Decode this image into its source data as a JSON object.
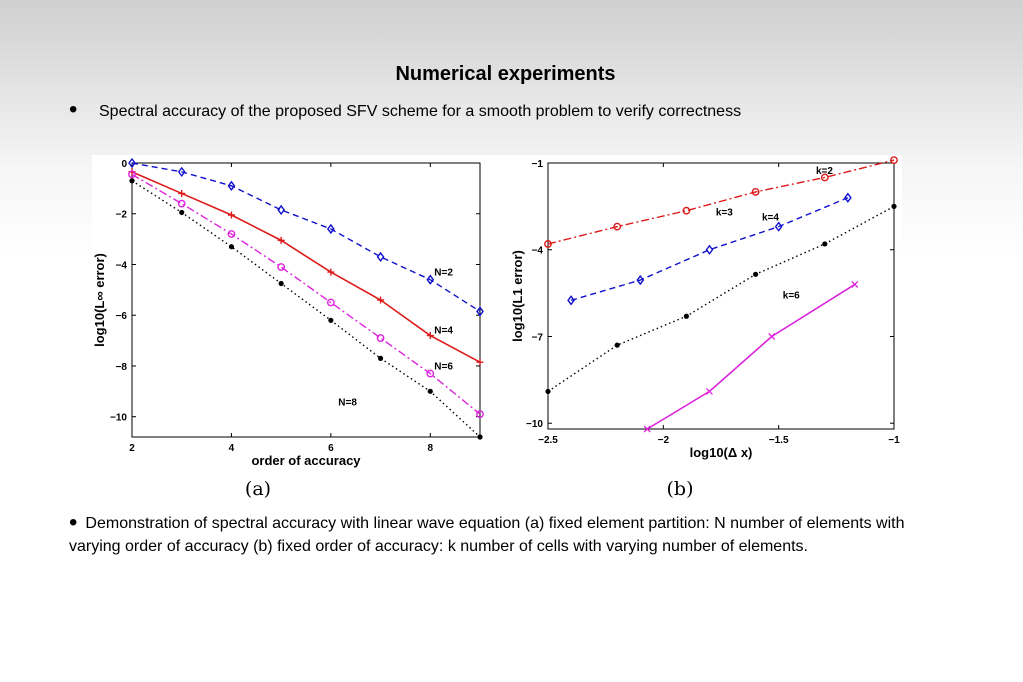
{
  "slide": {
    "title": "Numerical experiments",
    "bullet1": "Spectral accuracy of the proposed SFV scheme for a smooth problem to verify correctness",
    "bullet2": "Demonstration of spectral accuracy with linear wave equation (a) fixed element partition: N number of elements with varying order of accuracy (b) fixed order of accuracy: k number of cells with varying number of elements.",
    "bullet_glyph": "•"
  },
  "chart_data": [
    {
      "type": "line",
      "subcaption": "(a)",
      "xlabel": "order of accuracy",
      "ylabel": "log10(L∞ error)",
      "xlim": [
        2,
        9
      ],
      "ylim": [
        -10.8,
        0
      ],
      "xticks": [
        2,
        4,
        6,
        8
      ],
      "yticks": [
        0,
        -2,
        -4,
        -6,
        -8,
        -10
      ],
      "series": [
        {
          "name": "N=2",
          "color": "#1010cc",
          "style": "dashed",
          "marker": "diamond",
          "x": [
            2,
            3,
            4,
            5,
            6,
            7,
            8,
            9
          ],
          "y": [
            0,
            -0.35,
            -0.9,
            -1.85,
            -2.6,
            -3.7,
            -4.6,
            -5.85
          ]
        },
        {
          "name": "N=4",
          "color": "#dd1a1a",
          "style": "solid",
          "marker": "plus",
          "x": [
            2,
            3,
            4,
            5,
            6,
            7,
            8,
            9
          ],
          "y": [
            -0.35,
            -1.2,
            -2.05,
            -3.05,
            -4.3,
            -5.4,
            -6.8,
            -7.85
          ]
        },
        {
          "name": "N=6",
          "color": "#dd22dd",
          "style": "dashdot",
          "marker": "circle",
          "x": [
            2,
            3,
            4,
            5,
            6,
            7,
            8,
            9
          ],
          "y": [
            -0.45,
            -1.6,
            -2.8,
            -4.1,
            -5.5,
            -6.9,
            -8.3,
            -9.9
          ]
        },
        {
          "name": "N=8",
          "color": "#000000",
          "style": "dotted",
          "marker": "dot",
          "x": [
            2,
            3,
            4,
            5,
            6,
            7,
            8,
            9
          ],
          "y": [
            -0.7,
            -1.95,
            -3.3,
            -4.75,
            -6.2,
            -7.7,
            -9.0,
            -10.8
          ]
        }
      ]
    },
    {
      "type": "line",
      "subcaption": "(b)",
      "xlabel": "log10(Δ x)",
      "ylabel": "log10(L1 error)",
      "xlim": [
        -2.5,
        -1
      ],
      "ylim": [
        -10.2,
        -1
      ],
      "xticks": [
        -2.5,
        -2,
        -1.5,
        -1
      ],
      "yticks": [
        -1,
        -4,
        -7,
        -10
      ],
      "series": [
        {
          "name": "k=2",
          "color": "#dd1a1a",
          "style": "dashdot",
          "marker": "circle",
          "x": [
            -2.5,
            -2.2,
            -1.9,
            -1.6,
            -1.3,
            -1.0
          ],
          "y": [
            -3.8,
            -3.2,
            -2.65,
            -2.0,
            -1.5,
            -0.9
          ]
        },
        {
          "name": "k=3",
          "color": "#1010cc",
          "style": "dashed",
          "marker": "diamond",
          "x": [
            -2.4,
            -2.1,
            -1.8,
            -1.5,
            -1.2
          ],
          "y": [
            -5.75,
            -5.05,
            -4.0,
            -3.2,
            -2.2
          ]
        },
        {
          "name": "k=4",
          "color": "#000000",
          "style": "dotted",
          "marker": "dot",
          "x": [
            -2.5,
            -2.2,
            -1.9,
            -1.6,
            -1.3,
            -1.0
          ],
          "y": [
            -8.9,
            -7.3,
            -6.3,
            -4.85,
            -3.8,
            -2.5
          ]
        },
        {
          "name": "k=6",
          "color": "#dd22dd",
          "style": "solid",
          "marker": "x",
          "x": [
            -2.07,
            -1.8,
            -1.53,
            -1.17
          ],
          "y": [
            -10.2,
            -8.9,
            -7.0,
            -5.2
          ]
        }
      ]
    }
  ]
}
